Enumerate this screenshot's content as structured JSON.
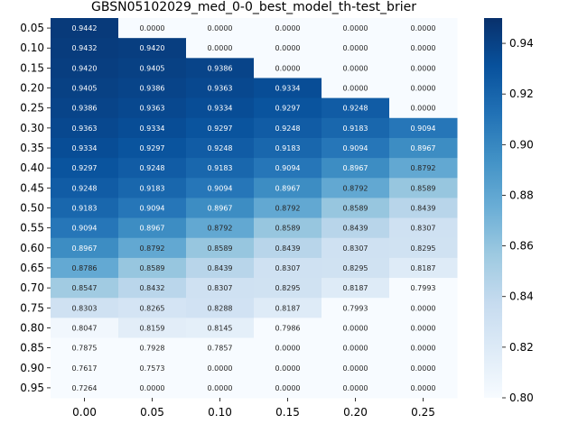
{
  "chart_data": {
    "type": "heatmap",
    "title": "GBSN05102029_med_0-0_best_model_th-test_brier",
    "xlabel": "",
    "ylabel": "",
    "x_categories": [
      "0.00",
      "0.05",
      "0.10",
      "0.15",
      "0.20",
      "0.25"
    ],
    "y_categories": [
      "0.05",
      "0.10",
      "0.15",
      "0.20",
      "0.25",
      "0.30",
      "0.35",
      "0.40",
      "0.45",
      "0.50",
      "0.55",
      "0.60",
      "0.65",
      "0.70",
      "0.75",
      "0.80",
      "0.85",
      "0.90",
      "0.95"
    ],
    "values": [
      [
        "0.9442",
        "0.0000",
        "0.0000",
        "0.0000",
        "0.0000",
        "0.0000"
      ],
      [
        "0.9432",
        "0.9420",
        "0.0000",
        "0.0000",
        "0.0000",
        "0.0000"
      ],
      [
        "0.9420",
        "0.9405",
        "0.9386",
        "0.0000",
        "0.0000",
        "0.0000"
      ],
      [
        "0.9405",
        "0.9386",
        "0.9363",
        "0.9334",
        "0.0000",
        "0.0000"
      ],
      [
        "0.9386",
        "0.9363",
        "0.9334",
        "0.9297",
        "0.9248",
        "0.0000"
      ],
      [
        "0.9363",
        "0.9334",
        "0.9297",
        "0.9248",
        "0.9183",
        "0.9094"
      ],
      [
        "0.9334",
        "0.9297",
        "0.9248",
        "0.9183",
        "0.9094",
        "0.8967"
      ],
      [
        "0.9297",
        "0.9248",
        "0.9183",
        "0.9094",
        "0.8967",
        "0.8792"
      ],
      [
        "0.9248",
        "0.9183",
        "0.9094",
        "0.8967",
        "0.8792",
        "0.8589"
      ],
      [
        "0.9183",
        "0.9094",
        "0.8967",
        "0.8792",
        "0.8589",
        "0.8439"
      ],
      [
        "0.9094",
        "0.8967",
        "0.8792",
        "0.8589",
        "0.8439",
        "0.8307"
      ],
      [
        "0.8967",
        "0.8792",
        "0.8589",
        "0.8439",
        "0.8307",
        "0.8295"
      ],
      [
        "0.8786",
        "0.8589",
        "0.8439",
        "0.8307",
        "0.8295",
        "0.8187"
      ],
      [
        "0.8547",
        "0.8432",
        "0.8307",
        "0.8295",
        "0.8187",
        "0.7993"
      ],
      [
        "0.8303",
        "0.8265",
        "0.8288",
        "0.8187",
        "0.7993",
        "0.0000"
      ],
      [
        "0.8047",
        "0.8159",
        "0.8145",
        "0.7986",
        "0.0000",
        "0.0000"
      ],
      [
        "0.7875",
        "0.7928",
        "0.7857",
        "0.0000",
        "0.0000",
        "0.0000"
      ],
      [
        "0.7617",
        "0.7573",
        "0.0000",
        "0.0000",
        "0.0000",
        "0.0000"
      ],
      [
        "0.7264",
        "0.0000",
        "0.0000",
        "0.0000",
        "0.0000",
        "0.0000"
      ]
    ],
    "colorbar": {
      "min": 0.8,
      "max": 0.95,
      "ticks": [
        "0.80",
        "0.82",
        "0.84",
        "0.86",
        "0.88",
        "0.90",
        "0.92",
        "0.94"
      ]
    },
    "colormap": "Blues",
    "grid": false
  }
}
